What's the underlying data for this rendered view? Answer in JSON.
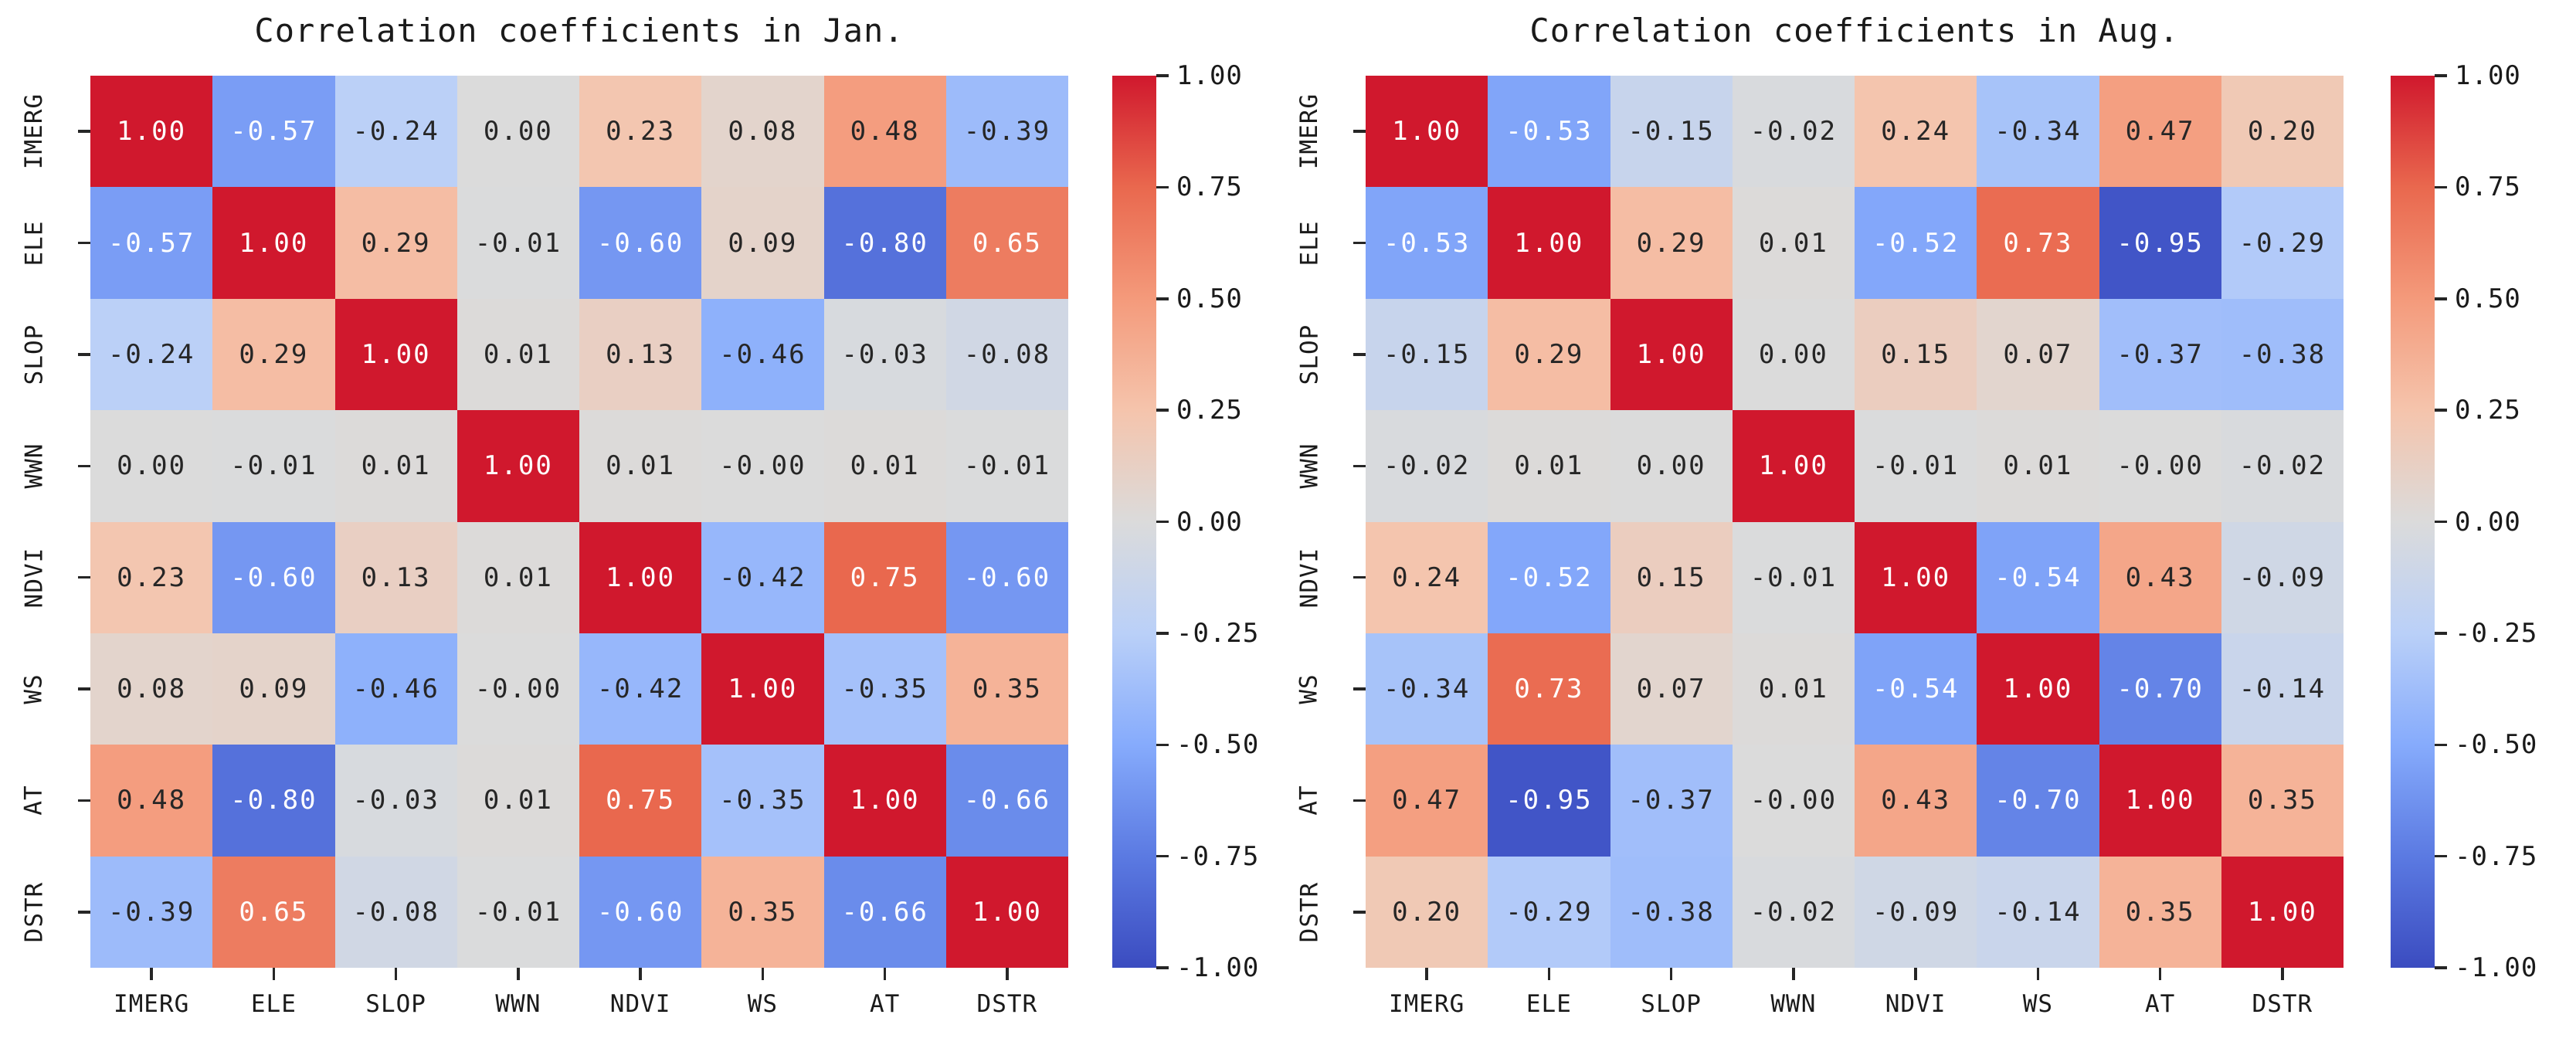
{
  "figure": {
    "background": "#ffffff"
  },
  "chart_data": [
    {
      "type": "heatmap",
      "title": "Correlation coefficients in Jan.",
      "categories": [
        "IMERG",
        "ELE",
        "SLOP",
        "WWN",
        "NDVI",
        "WS",
        "AT",
        "DSTR"
      ],
      "matrix": [
        [
          "1.00",
          "-0.57",
          "-0.24",
          "0.00",
          "0.23",
          "0.08",
          "0.48",
          "-0.39"
        ],
        [
          "-0.57",
          "1.00",
          "0.29",
          "-0.01",
          "-0.60",
          "0.09",
          "-0.80",
          "0.65"
        ],
        [
          "-0.24",
          "0.29",
          "1.00",
          "0.01",
          "0.13",
          "-0.46",
          "-0.03",
          "-0.08"
        ],
        [
          "0.00",
          "-0.01",
          "0.01",
          "1.00",
          "0.01",
          "-0.00",
          "0.01",
          "-0.01"
        ],
        [
          "0.23",
          "-0.60",
          "0.13",
          "0.01",
          "1.00",
          "-0.42",
          "0.75",
          "-0.60"
        ],
        [
          "0.08",
          "0.09",
          "-0.46",
          "-0.00",
          "-0.42",
          "1.00",
          "-0.35",
          "0.35"
        ],
        [
          "0.48",
          "-0.80",
          "-0.03",
          "0.01",
          "0.75",
          "-0.35",
          "1.00",
          "-0.66"
        ],
        [
          "-0.39",
          "0.65",
          "-0.08",
          "-0.01",
          "-0.60",
          "0.35",
          "-0.66",
          "1.00"
        ]
      ],
      "colorbar_ticks": [
        "1.00",
        "0.75",
        "0.50",
        "0.25",
        "0.00",
        "-0.25",
        "-0.50",
        "-0.75",
        "-1.00"
      ],
      "vmin": -1,
      "vmax": 1,
      "xlabel": "",
      "ylabel": ""
    },
    {
      "type": "heatmap",
      "title": "Correlation coefficients in Aug.",
      "categories": [
        "IMERG",
        "ELE",
        "SLOP",
        "WWN",
        "NDVI",
        "WS",
        "AT",
        "DSTR"
      ],
      "matrix": [
        [
          "1.00",
          "-0.53",
          "-0.15",
          "-0.02",
          "0.24",
          "-0.34",
          "0.47",
          "0.20"
        ],
        [
          "-0.53",
          "1.00",
          "0.29",
          "0.01",
          "-0.52",
          "0.73",
          "-0.95",
          "-0.29"
        ],
        [
          "-0.15",
          "0.29",
          "1.00",
          "0.00",
          "0.15",
          "0.07",
          "-0.37",
          "-0.38"
        ],
        [
          "-0.02",
          "0.01",
          "0.00",
          "1.00",
          "-0.01",
          "0.01",
          "-0.00",
          "-0.02"
        ],
        [
          "0.24",
          "-0.52",
          "0.15",
          "-0.01",
          "1.00",
          "-0.54",
          "0.43",
          "-0.09"
        ],
        [
          "-0.34",
          "0.73",
          "0.07",
          "0.01",
          "-0.54",
          "1.00",
          "-0.70",
          "-0.14"
        ],
        [
          "0.47",
          "-0.95",
          "-0.37",
          "-0.00",
          "0.43",
          "-0.70",
          "1.00",
          "0.35"
        ],
        [
          "0.20",
          "-0.29",
          "-0.38",
          "-0.02",
          "-0.09",
          "-0.14",
          "0.35",
          "1.00"
        ]
      ],
      "colorbar_ticks": [
        "1.00",
        "0.75",
        "0.50",
        "0.25",
        "0.00",
        "-0.25",
        "-0.50",
        "-0.75",
        "-1.00"
      ],
      "vmin": -1,
      "vmax": 1,
      "xlabel": "",
      "ylabel": ""
    }
  ],
  "colormap": {
    "name": "coolwarm",
    "stops": [
      [
        -1.0,
        "#3b4cc0"
      ],
      [
        -0.75,
        "#5b7ae2"
      ],
      [
        -0.5,
        "#86abfc"
      ],
      [
        -0.25,
        "#bad0f8"
      ],
      [
        0.0,
        "#dbdbdb"
      ],
      [
        0.25,
        "#f5c4ac"
      ],
      [
        0.5,
        "#f49a7b"
      ],
      [
        0.75,
        "#e9684e"
      ],
      [
        1.0,
        "#d0182d"
      ]
    ],
    "annot_dark": "#262626",
    "annot_light": "#ffffff",
    "tick_color": "#262626"
  }
}
